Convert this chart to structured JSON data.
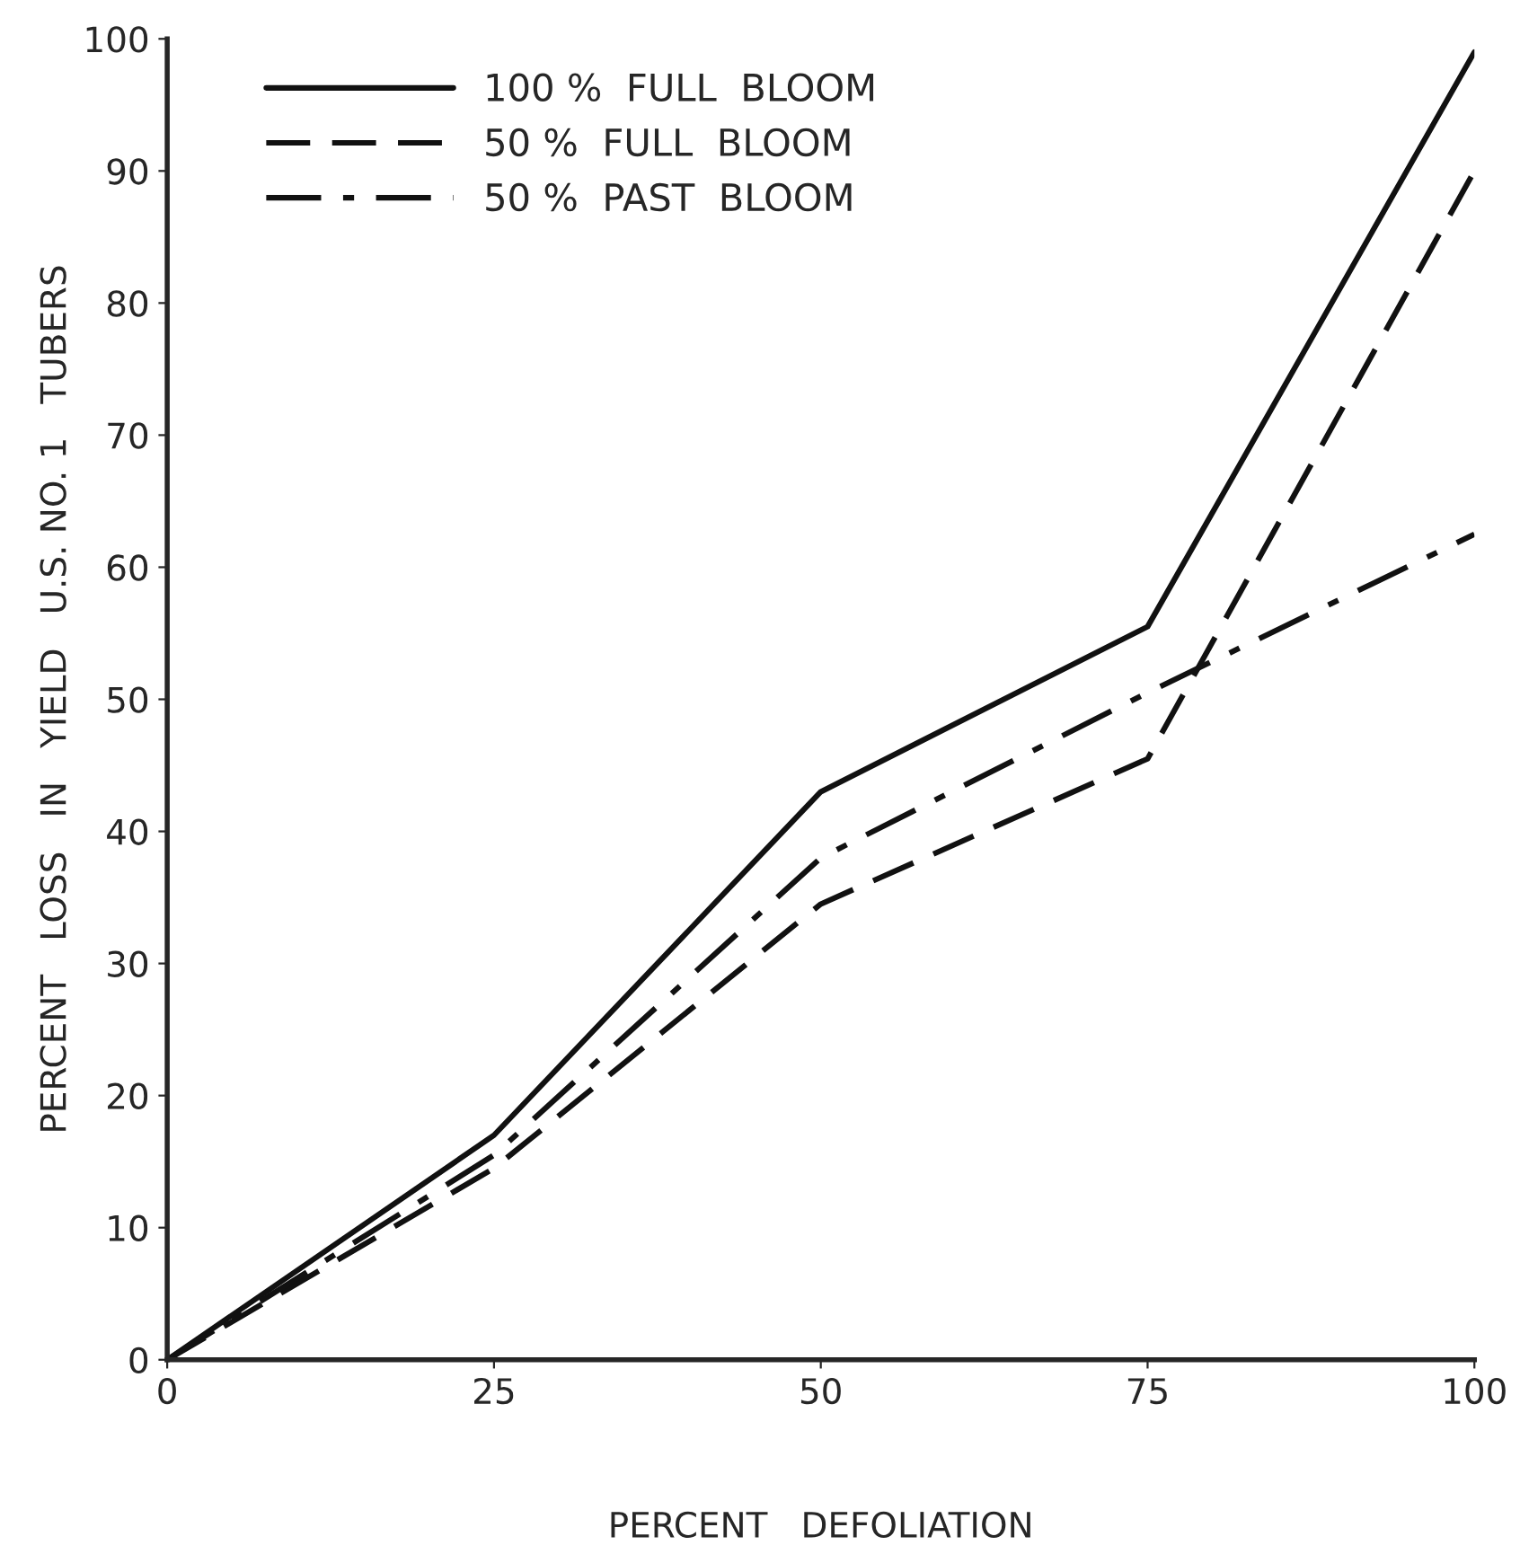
{
  "chart_data": {
    "type": "line",
    "xlabel": "PERCENT   DEFOLIATION",
    "ylabel": "PERCENT   LOSS   IN   YIELD   U.S. NO. 1   TUBERS",
    "x": [
      0,
      25,
      50,
      75,
      100
    ],
    "series": [
      {
        "name": "100 %  FULL  BLOOM",
        "color": "#111111",
        "line_style": "solid",
        "values": [
          0,
          17,
          43,
          55.5,
          99
        ]
      },
      {
        "name": "50 %  FULL  BLOOM",
        "color": "#111111",
        "line_style": "dashed",
        "values": [
          0,
          14.5,
          34.5,
          45.5,
          90
        ]
      },
      {
        "name": "50 %  PAST  BLOOM",
        "color": "#111111",
        "line_style": "dashdot",
        "values": [
          0,
          15.5,
          38,
          50.5,
          62.5
        ]
      }
    ],
    "xlim": [
      0,
      100
    ],
    "xticks": [
      0,
      25,
      50,
      75,
      100
    ],
    "ylim": [
      0,
      100
    ],
    "yticks": [
      0,
      10,
      20,
      30,
      40,
      50,
      60,
      70,
      80,
      90,
      100
    ],
    "grid": false,
    "legend": "top left",
    "marker": "none"
  }
}
